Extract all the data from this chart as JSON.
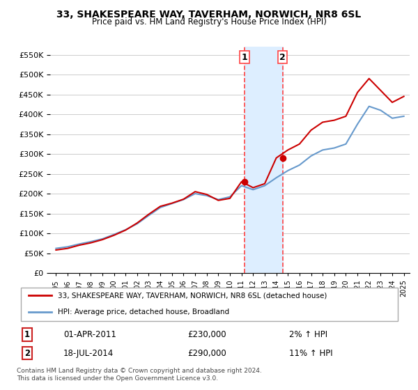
{
  "title": "33, SHAKESPEARE WAY, TAVERHAM, NORWICH, NR8 6SL",
  "subtitle": "Price paid vs. HM Land Registry's House Price Index (HPI)",
  "legend_line1": "33, SHAKESPEARE WAY, TAVERHAM, NORWICH, NR8 6SL (detached house)",
  "legend_line2": "HPI: Average price, detached house, Broadland",
  "footnote": "Contains HM Land Registry data © Crown copyright and database right 2024.\nThis data is licensed under the Open Government Licence v3.0.",
  "transaction1_label": "1",
  "transaction1_date": "01-APR-2011",
  "transaction1_price": "£230,000",
  "transaction1_hpi": "2% ↑ HPI",
  "transaction2_label": "2",
  "transaction2_date": "18-JUL-2014",
  "transaction2_price": "£290,000",
  "transaction2_hpi": "11% ↑ HPI",
  "ylim": [
    0,
    570000
  ],
  "yticks": [
    0,
    50000,
    100000,
    150000,
    200000,
    250000,
    300000,
    350000,
    400000,
    450000,
    500000,
    550000
  ],
  "red_line_color": "#cc0000",
  "blue_line_color": "#6699cc",
  "shade_color": "#ddeeff",
  "vline_color": "#ff4444",
  "transaction1_x": 2011.25,
  "transaction2_x": 2014.54,
  "hpi_years": [
    1995,
    1996,
    1997,
    1998,
    1999,
    2000,
    2001,
    2002,
    2003,
    2004,
    2005,
    2006,
    2007,
    2008,
    2009,
    2010,
    2011,
    2012,
    2013,
    2014,
    2015,
    2016,
    2017,
    2018,
    2019,
    2020,
    2021,
    2022,
    2023,
    2024,
    2025
  ],
  "hpi_values": [
    62000,
    66000,
    73000,
    79000,
    86000,
    97000,
    109000,
    124000,
    145000,
    165000,
    175000,
    185000,
    200000,
    195000,
    185000,
    192000,
    220000,
    210000,
    220000,
    240000,
    258000,
    272000,
    295000,
    310000,
    315000,
    325000,
    375000,
    420000,
    410000,
    390000,
    395000
  ],
  "red_years": [
    1995,
    1996,
    1997,
    1998,
    1999,
    2000,
    2001,
    2002,
    2003,
    2004,
    2005,
    2006,
    2007,
    2008,
    2009,
    2010,
    2011,
    2012,
    2013,
    2014,
    2015,
    2016,
    2017,
    2018,
    2019,
    2020,
    2021,
    2022,
    2023,
    2024,
    2025
  ],
  "red_values": [
    58000,
    62000,
    70000,
    76000,
    84000,
    95000,
    108000,
    126000,
    148000,
    168000,
    176000,
    186000,
    205000,
    198000,
    183000,
    188000,
    230000,
    215000,
    225000,
    290000,
    310000,
    325000,
    360000,
    380000,
    385000,
    395000,
    455000,
    490000,
    460000,
    430000,
    445000
  ],
  "xtick_years": [
    1995,
    1996,
    1997,
    1998,
    1999,
    2000,
    2001,
    2002,
    2003,
    2004,
    2005,
    2006,
    2007,
    2008,
    2009,
    2010,
    2011,
    2012,
    2013,
    2014,
    2015,
    2016,
    2017,
    2018,
    2019,
    2020,
    2021,
    2022,
    2023,
    2024,
    2025
  ]
}
